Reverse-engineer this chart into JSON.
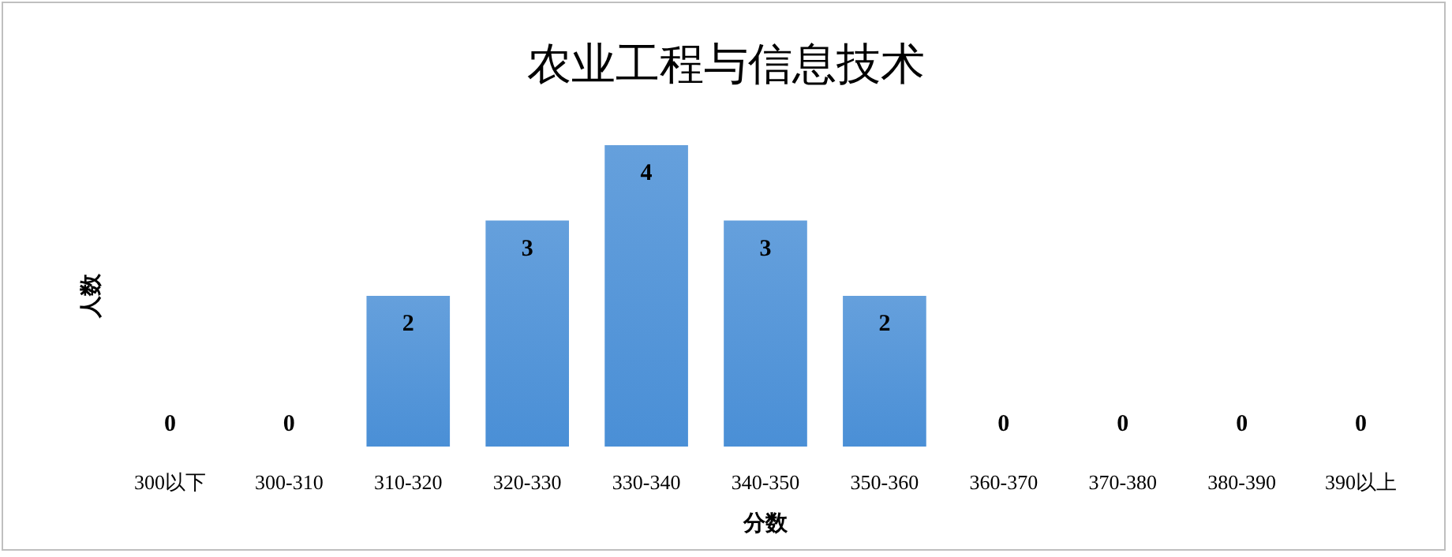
{
  "chart_data": {
    "type": "bar",
    "title": "农业工程与信息技术",
    "xlabel": "分数",
    "ylabel": "人数",
    "categories": [
      "300以下",
      "300-310",
      "310-320",
      "320-330",
      "330-340",
      "340-350",
      "350-360",
      "360-370",
      "370-380",
      "380-390",
      "390以上"
    ],
    "values": [
      0,
      0,
      2,
      3,
      4,
      3,
      2,
      0,
      0,
      0,
      0
    ],
    "color": "#4a8fd6",
    "data_labels": true
  }
}
